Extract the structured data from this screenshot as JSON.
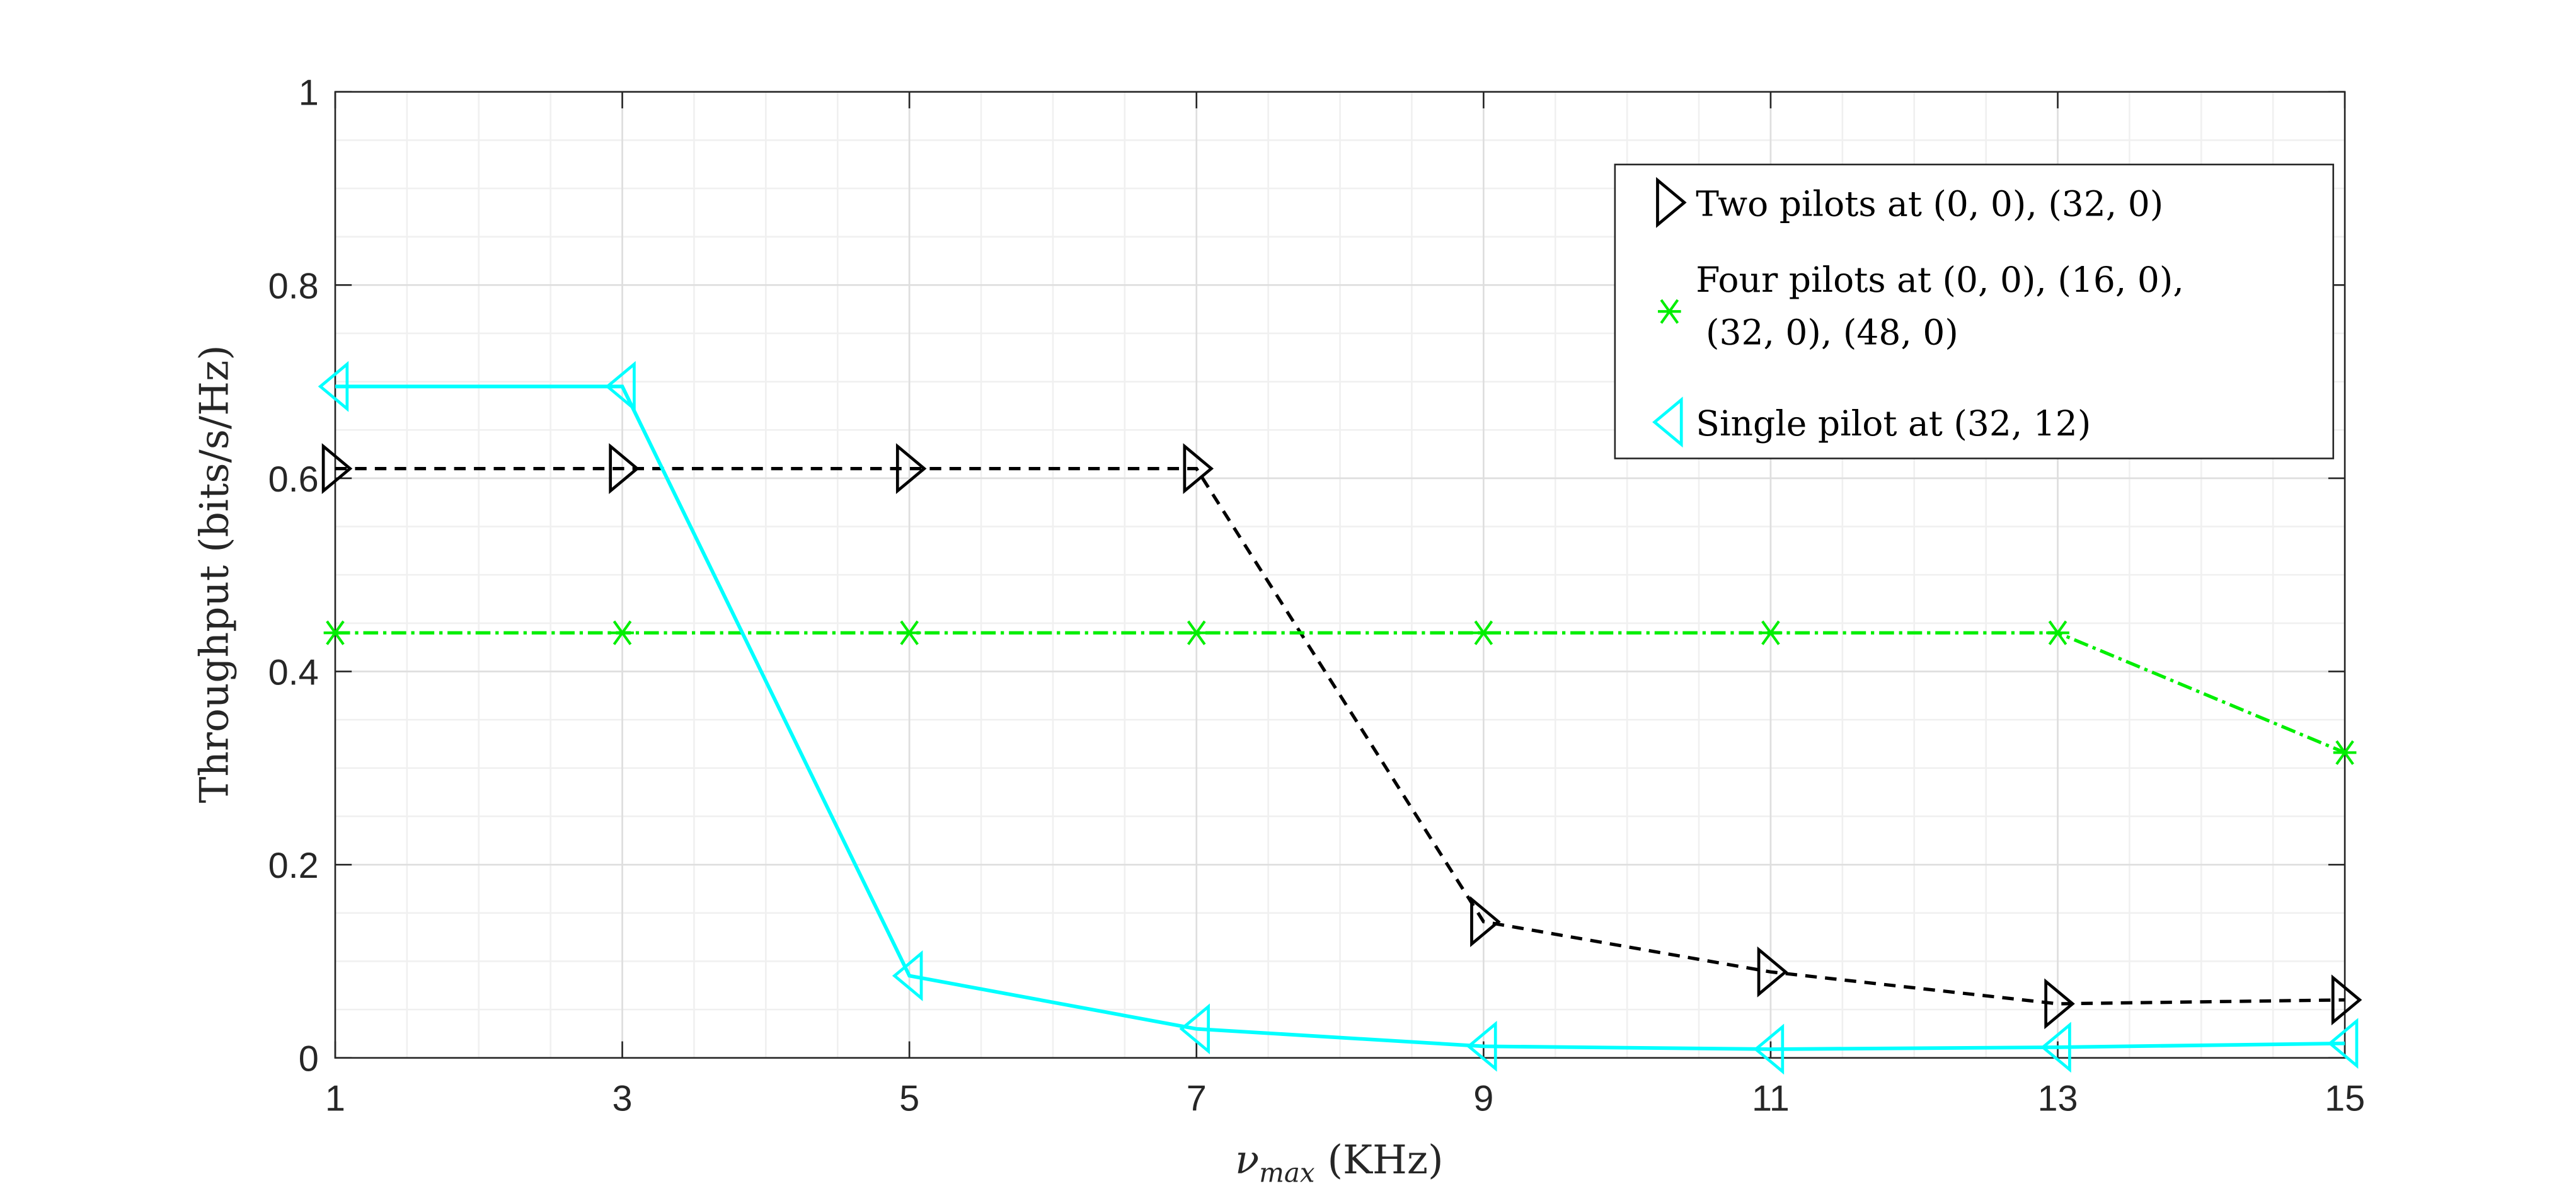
{
  "chart_data": {
    "type": "line",
    "title": "",
    "xlabel": "ν_max (KHz)",
    "xlabel_main": "ν",
    "xlabel_sub": "max",
    "xlabel_unit": " (KHz)",
    "ylabel": "Throughput (bits/s/Hz)",
    "xlim": [
      1,
      15
    ],
    "ylim": [
      0,
      1
    ],
    "xticks": [
      "1",
      "3",
      "5",
      "7",
      "9",
      "11",
      "13",
      "15"
    ],
    "yticks": [
      "0",
      "0.2",
      "0.4",
      "0.6",
      "0.8",
      "1"
    ],
    "grid": true,
    "legend_position": "top-right",
    "x": [
      1,
      3,
      5,
      7,
      9,
      11,
      13,
      15
    ],
    "series": [
      {
        "name": "Two pilots at (0,0),(32,0)",
        "legend_lines": [
          "Two pilots at (0, 0), (32, 0)"
        ],
        "color": "#000000",
        "marker": "triangle-right",
        "dash": "dashed",
        "values": [
          0.61,
          0.61,
          0.61,
          0.61,
          0.141,
          0.089,
          0.056,
          0.06
        ]
      },
      {
        "name": "Four pilots at (0,0),(16,0),(32,0),(48,0)",
        "legend_lines": [
          "Four pilots at (0, 0), (16, 0),",
          "(32, 0), (48, 0)"
        ],
        "color": "#00ee00",
        "marker": "asterisk",
        "dash": "dashdot",
        "values": [
          0.44,
          0.44,
          0.44,
          0.44,
          0.44,
          0.44,
          0.44,
          0.316
        ]
      },
      {
        "name": "Single pilot at (32,12)",
        "legend_lines": [
          "Single pilot at (32, 12)"
        ],
        "color": "#00ffff",
        "marker": "triangle-left",
        "dash": "solid",
        "values": [
          0.695,
          0.695,
          0.085,
          0.03,
          0.012,
          0.009,
          0.011,
          0.015
        ]
      }
    ]
  }
}
